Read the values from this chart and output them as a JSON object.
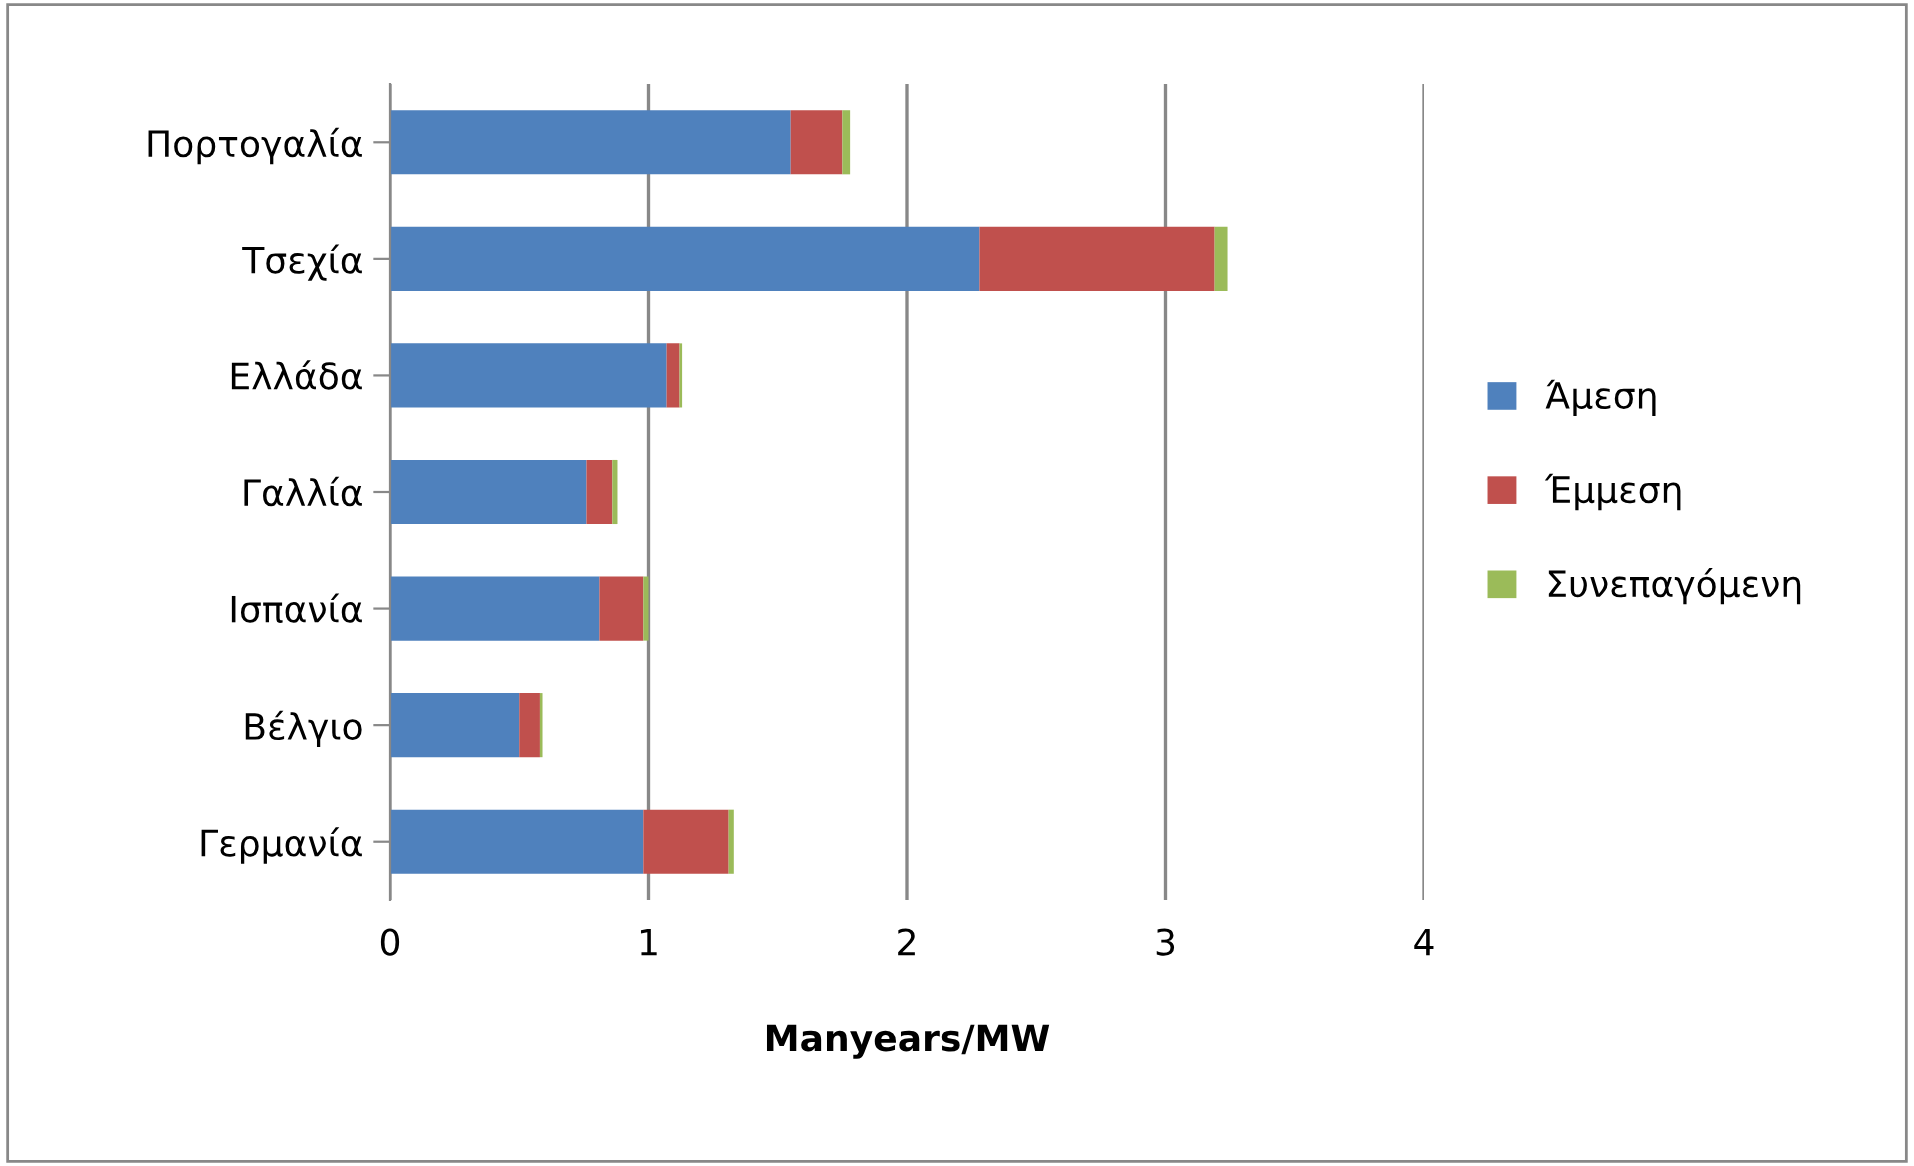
{
  "chart_data": {
    "type": "bar",
    "orientation": "horizontal",
    "stacked": true,
    "xlabel": "Manyears/MW",
    "categories": [
      "Πορτογαλία",
      "Τσεχία",
      "Ελλάδα",
      "Γαλλία",
      "Ισπανία",
      "Βέλγιο",
      "Γερμανία"
    ],
    "series": [
      {
        "name": "Άμεση",
        "color": "#4f81bd",
        "values": [
          1.55,
          2.28,
          1.07,
          0.76,
          0.81,
          0.5,
          0.98
        ]
      },
      {
        "name": "Έμμεση",
        "color": "#c0504d",
        "values": [
          0.2,
          0.91,
          0.05,
          0.1,
          0.17,
          0.08,
          0.33
        ]
      },
      {
        "name": "Συνεπαγόμενη",
        "color": "#9bbb59",
        "values": [
          0.03,
          0.05,
          0.01,
          0.02,
          0.02,
          0.01,
          0.02
        ]
      }
    ],
    "xlim": [
      0,
      4
    ],
    "xticks": [
      0,
      1,
      2,
      3,
      4
    ],
    "grid": "x",
    "legend": "right"
  }
}
